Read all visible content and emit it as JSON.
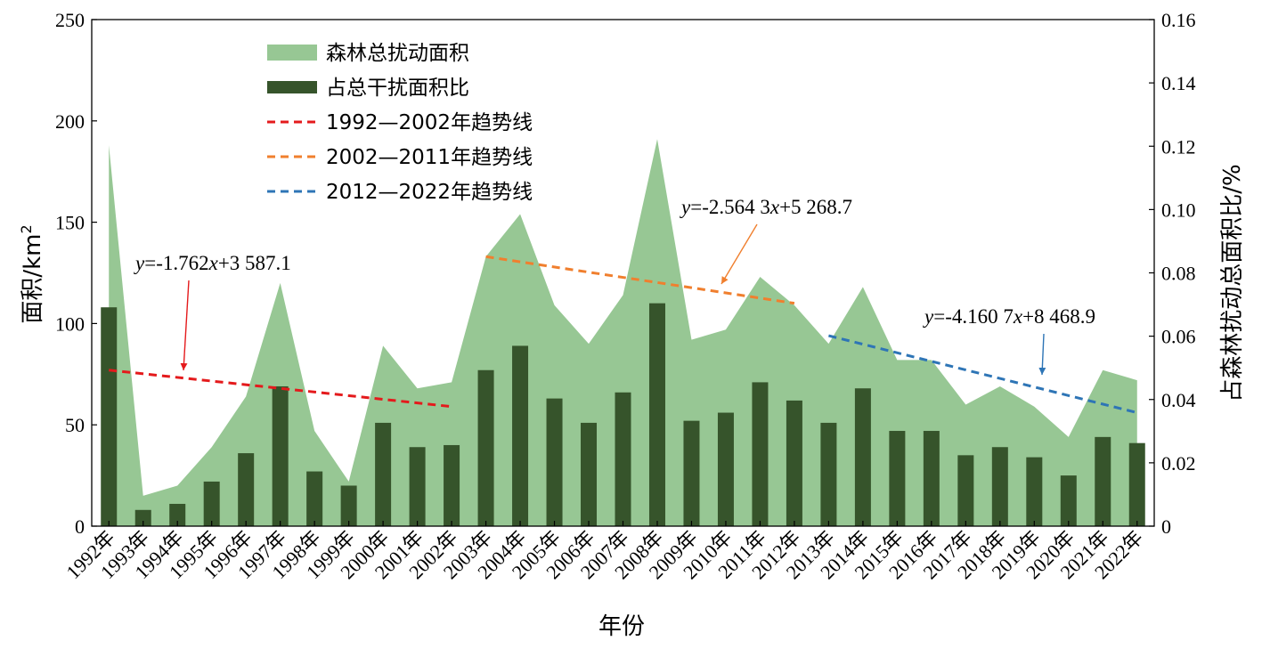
{
  "chart_data": {
    "type": "bar",
    "xlabel": "年份",
    "ylabel_left_main": "面积/km",
    "ylabel_left_sup": "2",
    "ylabel_right": "占森林扰动总面积比/%",
    "ylim_left": [
      0,
      250
    ],
    "yticks_left": [
      "0",
      "50",
      "100",
      "150",
      "200",
      "250"
    ],
    "ylim_right": [
      0,
      0.16
    ],
    "yticks_right": [
      "0",
      "0.02",
      "0.04",
      "0.06",
      "0.08",
      "0.10",
      "0.12",
      "0.14",
      "0.16"
    ],
    "categories": [
      "1992年",
      "1993年",
      "1994年",
      "1995年",
      "1996年",
      "1997年",
      "1998年",
      "1999年",
      "2000年",
      "2001年",
      "2002年",
      "2003年",
      "2004年",
      "2005年",
      "2006年",
      "2007年",
      "2008年",
      "2009年",
      "2010年",
      "2011年",
      "2012年",
      "2013年",
      "2014年",
      "2015年",
      "2016年",
      "2017年",
      "2018年",
      "2019年",
      "2020年",
      "2021年",
      "2022年"
    ],
    "area_series": {
      "name": "森林总扰动面积",
      "color": "#97c794",
      "values": [
        188,
        15,
        20,
        39,
        64,
        120,
        47,
        22,
        89,
        68,
        71,
        133,
        154,
        109,
        90,
        114,
        191,
        92,
        97,
        123,
        109,
        90,
        118,
        82,
        82,
        60,
        69,
        59,
        44,
        77,
        72
      ]
    },
    "bar_series": {
      "name": "占总干扰面积比",
      "color": "#36542b",
      "values": [
        108,
        8,
        11,
        22,
        36,
        69,
        27,
        20,
        51,
        39,
        40,
        77,
        89,
        63,
        51,
        66,
        110,
        52,
        56,
        71,
        62,
        51,
        68,
        47,
        47,
        35,
        39,
        34,
        25,
        44,
        41
      ]
    },
    "trend_lines": [
      {
        "name": "1992—2002年趋势线",
        "color": "#e41a1c",
        "from": "1992年",
        "to": "2002年",
        "y_start": 77,
        "y_end": 59,
        "equation": {
          "prefix": "y",
          "middle": "=-1.762",
          "var": "x",
          "suffix": "+3 587.1"
        }
      },
      {
        "name": "2002—2011年趋势线",
        "color": "#f07f2e",
        "from": "2003年",
        "to": "2012年",
        "y_start": 133,
        "y_end": 110,
        "equation": {
          "prefix": "y",
          "middle": "=-2.564 3",
          "var": "x",
          "suffix": "+5 268.7"
        }
      },
      {
        "name": "2012—2022年趋势线",
        "color": "#2e75b6",
        "from": "2013年",
        "to": "2022年",
        "y_start": 94,
        "y_end": 56,
        "equation": {
          "prefix": "y",
          "middle": "=-4.160 7",
          "var": "x",
          "suffix": "+8 468.9"
        }
      }
    ],
    "legend": {
      "position": "top-left",
      "entries": [
        "森林总扰动面积",
        "占总干扰面积比",
        "1992—2002年趋势线",
        "2002—2011年趋势线",
        "2012—2022年趋势线"
      ]
    }
  }
}
